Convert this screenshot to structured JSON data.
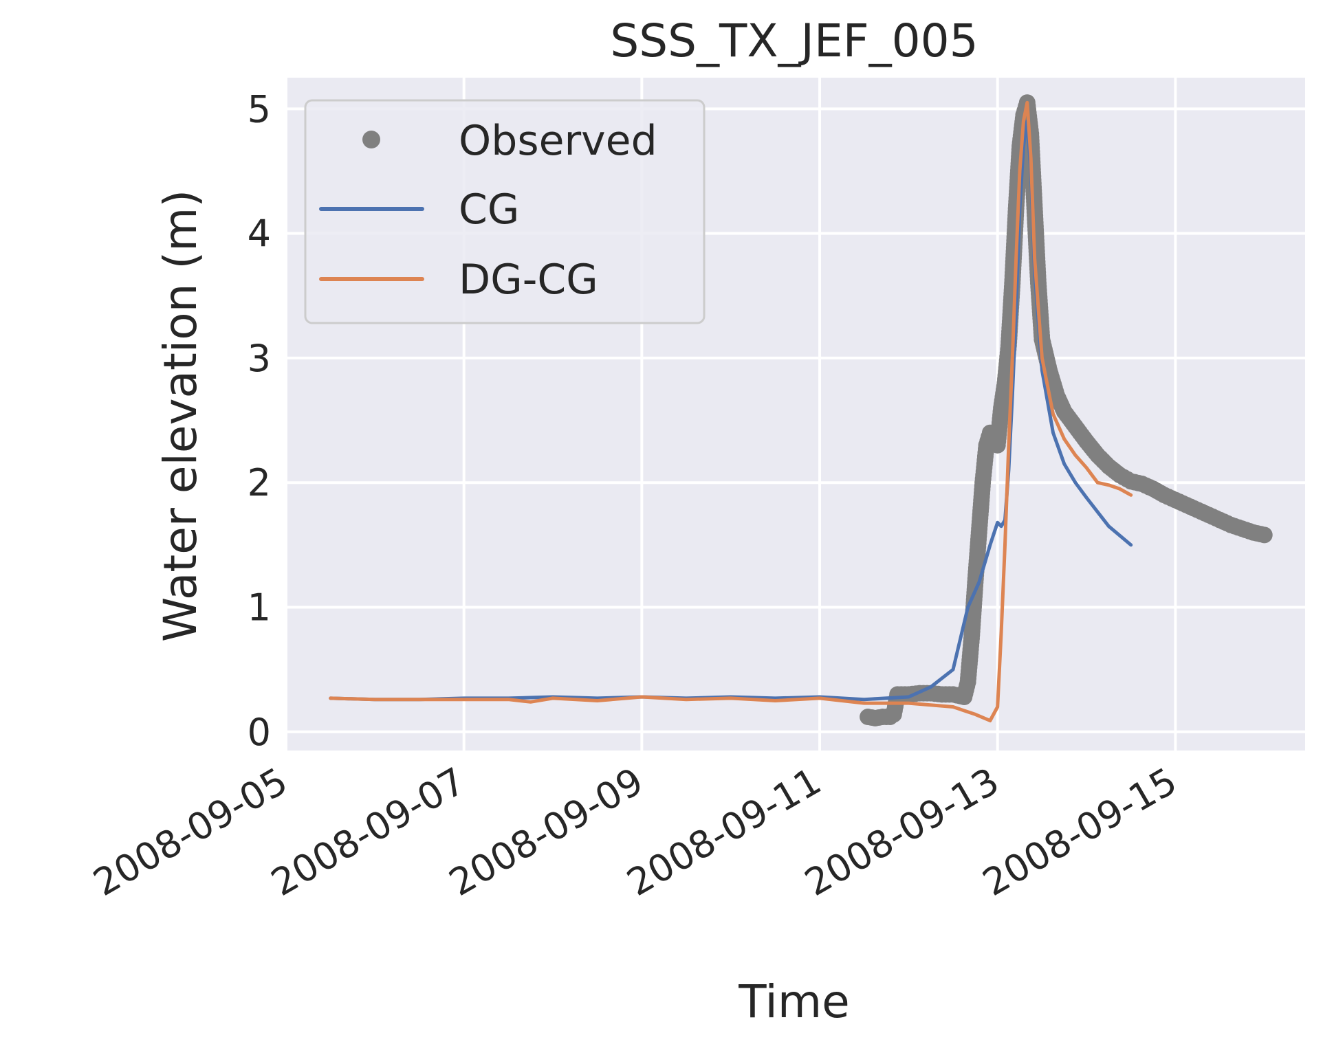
{
  "chart_data": {
    "type": "line",
    "title": "SSS_TX_JEF_005",
    "xlabel": "Time",
    "ylabel": "Water elevation (m)",
    "xlim": [
      "2008-09-05T00:00",
      "2008-09-16T11:00"
    ],
    "ylim": [
      -0.15,
      5.25
    ],
    "grid": true,
    "legend_position": "upper left",
    "x_ticks": [
      {
        "value": "2008-09-05T00:00",
        "label": "2008-09-05"
      },
      {
        "value": "2008-09-07T00:00",
        "label": "2008-09-07"
      },
      {
        "value": "2008-09-09T00:00",
        "label": "2008-09-09"
      },
      {
        "value": "2008-09-11T00:00",
        "label": "2008-09-11"
      },
      {
        "value": "2008-09-13T00:00",
        "label": "2008-09-13"
      },
      {
        "value": "2008-09-15T00:00",
        "label": "2008-09-15"
      }
    ],
    "y_ticks": [
      {
        "value": 0,
        "label": "0"
      },
      {
        "value": 1,
        "label": "1"
      },
      {
        "value": 2,
        "label": "2"
      },
      {
        "value": 3,
        "label": "3"
      },
      {
        "value": 4,
        "label": "4"
      },
      {
        "value": 5,
        "label": "5"
      }
    ],
    "series": [
      {
        "name": "Observed",
        "style": "markers",
        "color": "#808080",
        "points": [
          [
            "2008-09-11T13:00",
            0.12
          ],
          [
            "2008-09-11T15:00",
            0.11
          ],
          [
            "2008-09-11T17:00",
            0.12
          ],
          [
            "2008-09-11T19:00",
            0.12
          ],
          [
            "2008-09-11T20:00",
            0.14
          ],
          [
            "2008-09-11T21:00",
            0.3
          ],
          [
            "2008-09-12T00:00",
            0.3
          ],
          [
            "2008-09-12T03:00",
            0.31
          ],
          [
            "2008-09-12T06:00",
            0.31
          ],
          [
            "2008-09-12T09:00",
            0.3
          ],
          [
            "2008-09-12T12:00",
            0.3
          ],
          [
            "2008-09-12T15:00",
            0.28
          ],
          [
            "2008-09-12T16:00",
            0.4
          ],
          [
            "2008-09-12T17:00",
            0.75
          ],
          [
            "2008-09-12T18:00",
            1.2
          ],
          [
            "2008-09-12T19:00",
            1.6
          ],
          [
            "2008-09-12T20:00",
            2.0
          ],
          [
            "2008-09-12T21:00",
            2.3
          ],
          [
            "2008-09-12T22:00",
            2.4
          ],
          [
            "2008-09-12T23:00",
            2.38
          ],
          [
            "2008-09-13T00:00",
            2.3
          ],
          [
            "2008-09-13T01:00",
            2.6
          ],
          [
            "2008-09-13T02:00",
            2.8
          ],
          [
            "2008-09-13T03:00",
            3.1
          ],
          [
            "2008-09-13T04:00",
            3.6
          ],
          [
            "2008-09-13T05:00",
            4.2
          ],
          [
            "2008-09-13T06:00",
            4.7
          ],
          [
            "2008-09-13T07:00",
            4.95
          ],
          [
            "2008-09-13T08:00",
            5.05
          ],
          [
            "2008-09-13T09:00",
            4.8
          ],
          [
            "2008-09-13T10:00",
            4.2
          ],
          [
            "2008-09-13T11:00",
            3.6
          ],
          [
            "2008-09-13T12:00",
            3.15
          ],
          [
            "2008-09-13T14:00",
            2.9
          ],
          [
            "2008-09-13T16:00",
            2.7
          ],
          [
            "2008-09-13T18:00",
            2.57
          ],
          [
            "2008-09-13T21:00",
            2.45
          ],
          [
            "2008-09-14T00:00",
            2.33
          ],
          [
            "2008-09-14T03:00",
            2.22
          ],
          [
            "2008-09-14T06:00",
            2.13
          ],
          [
            "2008-09-14T09:00",
            2.06
          ],
          [
            "2008-09-14T12:00",
            2.01
          ],
          [
            "2008-09-14T15:00",
            1.99
          ],
          [
            "2008-09-14T18:00",
            1.95
          ],
          [
            "2008-09-14T21:00",
            1.9
          ],
          [
            "2008-09-15T00:00",
            1.86
          ],
          [
            "2008-09-15T03:00",
            1.82
          ],
          [
            "2008-09-15T06:00",
            1.78
          ],
          [
            "2008-09-15T09:00",
            1.74
          ],
          [
            "2008-09-15T12:00",
            1.7
          ],
          [
            "2008-09-15T15:00",
            1.66
          ],
          [
            "2008-09-15T18:00",
            1.63
          ],
          [
            "2008-09-15T21:00",
            1.6
          ],
          [
            "2008-09-16T00:00",
            1.58
          ]
        ]
      },
      {
        "name": "CG",
        "style": "line",
        "color": "#4c72b0",
        "points": [
          [
            "2008-09-05T12:00",
            0.27
          ],
          [
            "2008-09-06T00:00",
            0.26
          ],
          [
            "2008-09-06T12:00",
            0.26
          ],
          [
            "2008-09-07T00:00",
            0.27
          ],
          [
            "2008-09-07T12:00",
            0.27
          ],
          [
            "2008-09-08T00:00",
            0.28
          ],
          [
            "2008-09-08T12:00",
            0.27
          ],
          [
            "2008-09-09T00:00",
            0.28
          ],
          [
            "2008-09-09T12:00",
            0.27
          ],
          [
            "2008-09-10T00:00",
            0.28
          ],
          [
            "2008-09-10T12:00",
            0.27
          ],
          [
            "2008-09-11T00:00",
            0.28
          ],
          [
            "2008-09-11T12:00",
            0.26
          ],
          [
            "2008-09-12T00:00",
            0.28
          ],
          [
            "2008-09-12T06:00",
            0.36
          ],
          [
            "2008-09-12T12:00",
            0.5
          ],
          [
            "2008-09-12T14:00",
            0.75
          ],
          [
            "2008-09-12T16:00",
            1.0
          ],
          [
            "2008-09-12T19:00",
            1.2
          ],
          [
            "2008-09-12T22:00",
            1.5
          ],
          [
            "2008-09-13T00:00",
            1.68
          ],
          [
            "2008-09-13T01:00",
            1.65
          ],
          [
            "2008-09-13T02:00",
            1.7
          ],
          [
            "2008-09-13T03:00",
            2.1
          ],
          [
            "2008-09-13T04:00",
            2.7
          ],
          [
            "2008-09-13T05:00",
            3.4
          ],
          [
            "2008-09-13T06:00",
            4.2
          ],
          [
            "2008-09-13T07:00",
            4.7
          ],
          [
            "2008-09-13T08:00",
            4.9
          ],
          [
            "2008-09-13T09:00",
            4.5
          ],
          [
            "2008-09-13T10:00",
            3.7
          ],
          [
            "2008-09-13T12:00",
            2.9
          ],
          [
            "2008-09-13T15:00",
            2.4
          ],
          [
            "2008-09-13T18:00",
            2.15
          ],
          [
            "2008-09-13T21:00",
            2.0
          ],
          [
            "2008-09-14T00:00",
            1.88
          ],
          [
            "2008-09-14T06:00",
            1.65
          ],
          [
            "2008-09-14T12:00",
            1.5
          ]
        ]
      },
      {
        "name": "DG-CG",
        "style": "line",
        "color": "#dd8452",
        "points": [
          [
            "2008-09-05T12:00",
            0.27
          ],
          [
            "2008-09-06T00:00",
            0.26
          ],
          [
            "2008-09-06T12:00",
            0.26
          ],
          [
            "2008-09-07T00:00",
            0.26
          ],
          [
            "2008-09-07T12:00",
            0.26
          ],
          [
            "2008-09-07T18:00",
            0.24
          ],
          [
            "2008-09-08T00:00",
            0.27
          ],
          [
            "2008-09-08T12:00",
            0.25
          ],
          [
            "2008-09-09T00:00",
            0.28
          ],
          [
            "2008-09-09T12:00",
            0.26
          ],
          [
            "2008-09-10T00:00",
            0.27
          ],
          [
            "2008-09-10T12:00",
            0.25
          ],
          [
            "2008-09-11T00:00",
            0.27
          ],
          [
            "2008-09-11T12:00",
            0.23
          ],
          [
            "2008-09-12T00:00",
            0.23
          ],
          [
            "2008-09-12T12:00",
            0.2
          ],
          [
            "2008-09-12T18:00",
            0.14
          ],
          [
            "2008-09-12T22:00",
            0.09
          ],
          [
            "2008-09-13T00:00",
            0.2
          ],
          [
            "2008-09-13T01:00",
            0.8
          ],
          [
            "2008-09-13T02:00",
            1.5
          ],
          [
            "2008-09-13T03:00",
            2.3
          ],
          [
            "2008-09-13T04:00",
            3.0
          ],
          [
            "2008-09-13T05:00",
            3.8
          ],
          [
            "2008-09-13T06:00",
            4.5
          ],
          [
            "2008-09-13T07:00",
            4.9
          ],
          [
            "2008-09-13T08:00",
            5.05
          ],
          [
            "2008-09-13T09:00",
            4.6
          ],
          [
            "2008-09-13T10:00",
            3.8
          ],
          [
            "2008-09-13T12:00",
            3.0
          ],
          [
            "2008-09-13T15:00",
            2.55
          ],
          [
            "2008-09-13T18:00",
            2.35
          ],
          [
            "2008-09-13T21:00",
            2.22
          ],
          [
            "2008-09-14T00:00",
            2.12
          ],
          [
            "2008-09-14T03:00",
            2.0
          ],
          [
            "2008-09-14T06:00",
            1.98
          ],
          [
            "2008-09-14T09:00",
            1.95
          ],
          [
            "2008-09-14T12:00",
            1.9
          ]
        ]
      }
    ]
  }
}
